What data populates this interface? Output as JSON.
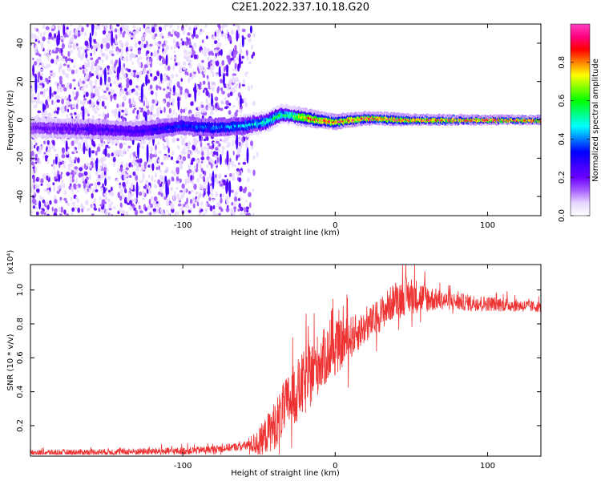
{
  "figure": {
    "title": "C2E1.2022.337.10.18.G20"
  },
  "chart_data": [
    {
      "type": "heatmap",
      "xlabel": "Height of straight line (km)",
      "ylabel": "Frequency (Hz)",
      "xlim": [
        -200,
        135
      ],
      "ylim": [
        -50,
        50
      ],
      "xticks": [
        -100,
        0,
        100
      ],
      "yticks": [
        -40,
        -20,
        0,
        20,
        40
      ],
      "grid": false,
      "colorbar": {
        "label": "Normalized spectral amplitude",
        "range": [
          0,
          1
        ],
        "ticks": [
          0.0,
          0.2,
          0.4,
          0.6,
          0.8
        ],
        "colormap": [
          "#ffffff",
          "#e6d6ff",
          "#a55cff",
          "#6a00ff",
          "#3a00ff",
          "#0000ff",
          "#0080ff",
          "#00ffff",
          "#00ff80",
          "#00ff00",
          "#80ff00",
          "#ffff00",
          "#ff8000",
          "#ff0000",
          "#ff0080",
          "#ff40c0"
        ]
      },
      "ridge": [
        {
          "x": -200,
          "y": -4
        },
        {
          "x": -150,
          "y": -5
        },
        {
          "x": -130,
          "y": -6
        },
        {
          "x": -100,
          "y": -3
        },
        {
          "x": -80,
          "y": -4
        },
        {
          "x": -60,
          "y": -3
        },
        {
          "x": -45,
          "y": -1
        },
        {
          "x": -35,
          "y": 3
        },
        {
          "x": -25,
          "y": 2
        },
        {
          "x": -10,
          "y": 0
        },
        {
          "x": 0,
          "y": -1
        },
        {
          "x": 20,
          "y": 1
        },
        {
          "x": 50,
          "y": 0
        },
        {
          "x": 80,
          "y": 0
        },
        {
          "x": 135,
          "y": 0
        }
      ],
      "ridge_half_width_hz": [
        {
          "x": -200,
          "w": 6
        },
        {
          "x": -60,
          "w": 5
        },
        {
          "x": -30,
          "w": 4
        },
        {
          "x": 0,
          "w": 3
        },
        {
          "x": 60,
          "w": 2
        },
        {
          "x": 135,
          "w": 1.5
        }
      ],
      "ridge_peak_amplitude": [
        {
          "x": -200,
          "a": 0.2
        },
        {
          "x": -120,
          "a": 0.3
        },
        {
          "x": -60,
          "a": 0.45
        },
        {
          "x": -30,
          "a": 0.6
        },
        {
          "x": -15,
          "a": 0.9
        },
        {
          "x": 60,
          "a": 0.95
        },
        {
          "x": 135,
          "a": 0.95
        }
      ],
      "noise_region_x": [
        -200,
        -55
      ]
    },
    {
      "type": "line",
      "xlabel": "Height of straight line (km)",
      "ylabel": "SNR (10 * v/v)",
      "y_multiplier": "(x10⁴)",
      "xlim": [
        -200,
        135
      ],
      "ylim": [
        0.02,
        1.15
      ],
      "xticks": [
        -100,
        0,
        100
      ],
      "yticks": [
        0.2,
        0.4,
        0.6,
        0.8,
        1.0
      ],
      "grid": false,
      "series": [
        {
          "color": "#ee3333",
          "mean_profile": [
            {
              "x": -200,
              "y": 0.04
            },
            {
              "x": -150,
              "y": 0.045
            },
            {
              "x": -100,
              "y": 0.05
            },
            {
              "x": -80,
              "y": 0.06
            },
            {
              "x": -60,
              "y": 0.08
            },
            {
              "x": -50,
              "y": 0.1
            },
            {
              "x": -40,
              "y": 0.2
            },
            {
              "x": -30,
              "y": 0.35
            },
            {
              "x": -20,
              "y": 0.45
            },
            {
              "x": -10,
              "y": 0.58
            },
            {
              "x": 0,
              "y": 0.65
            },
            {
              "x": 10,
              "y": 0.72
            },
            {
              "x": 20,
              "y": 0.78
            },
            {
              "x": 30,
              "y": 0.86
            },
            {
              "x": 40,
              "y": 0.95
            },
            {
              "x": 50,
              "y": 0.97
            },
            {
              "x": 60,
              "y": 0.95
            },
            {
              "x": 80,
              "y": 0.93
            },
            {
              "x": 100,
              "y": 0.92
            },
            {
              "x": 135,
              "y": 0.9
            }
          ],
          "fluctuation_profile": [
            {
              "x": -200,
              "a": 0.02
            },
            {
              "x": -60,
              "a": 0.03
            },
            {
              "x": -40,
              "a": 0.18
            },
            {
              "x": -20,
              "a": 0.25
            },
            {
              "x": 0,
              "a": 0.2
            },
            {
              "x": 20,
              "a": 0.12
            },
            {
              "x": 50,
              "a": 0.14
            },
            {
              "x": 70,
              "a": 0.07
            },
            {
              "x": 135,
              "a": 0.04
            }
          ]
        }
      ]
    }
  ]
}
